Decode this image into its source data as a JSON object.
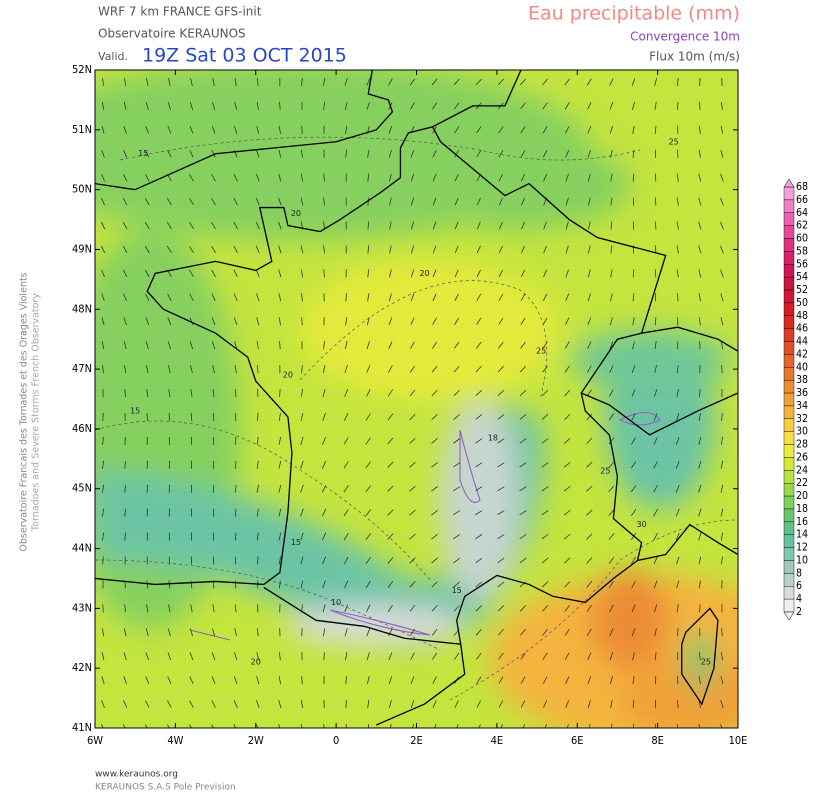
{
  "header": {
    "model": "WRF 7 km FRANCE  GFS-init",
    "observatory": "Observatoire KERAUNOS",
    "valid_label": "Valid.",
    "valid_time": "19Z Sat 03 OCT 2015",
    "title": "Eau precipitable (mm)",
    "subtitle1": "Convergence 10m",
    "subtitle2": "Flux 10m (m/s)"
  },
  "map": {
    "lat_labels": [
      "52N",
      "51N",
      "50N",
      "49N",
      "48N",
      "47N",
      "46N",
      "45N",
      "44N",
      "43N",
      "42N",
      "41N"
    ],
    "lon_labels": [
      "6W",
      "4W",
      "2W",
      "0",
      "2E",
      "4E",
      "6E",
      "8E",
      "10E"
    ],
    "contour_labels": [
      "20",
      "20",
      "20",
      "15",
      "15",
      "15",
      "15",
      "18",
      "25",
      "25",
      "30",
      "20",
      "10",
      "25",
      "25"
    ]
  },
  "colorbar": {
    "levels": [
      68,
      66,
      64,
      62,
      60,
      58,
      56,
      54,
      52,
      50,
      48,
      46,
      44,
      42,
      40,
      38,
      36,
      34,
      32,
      30,
      28,
      26,
      24,
      22,
      20,
      18,
      16,
      14,
      12,
      10,
      8,
      6,
      4,
      2
    ],
    "colors": [
      "#f4a0d8",
      "#f080c4",
      "#ec60b0",
      "#e84898",
      "#e03080",
      "#d8206c",
      "#d01458",
      "#cc1444",
      "#d01834",
      "#d41c28",
      "#d82820",
      "#dc3c24",
      "#e05028",
      "#e4642c",
      "#e87830",
      "#ec8c34",
      "#f0a038",
      "#f4b43c",
      "#f8cc40",
      "#f8e040",
      "#ecec3a",
      "#d4e838",
      "#b8e040",
      "#9cd84c",
      "#80d060",
      "#66c870",
      "#5cc28a",
      "#66c2a0",
      "#7fc6b0",
      "#9ccabb",
      "#b8d0cc",
      "#d8dcdc",
      "#f0f0f0"
    ]
  },
  "side": {
    "line1": "Observatoire Francais des Tornades et des Orages Violents",
    "line2": "Tornadoes and Severe Storms French Observatory"
  },
  "footer": {
    "url": "www.keraunos.org",
    "company": "KERAUNOS S.A.S Pole Prevision"
  }
}
